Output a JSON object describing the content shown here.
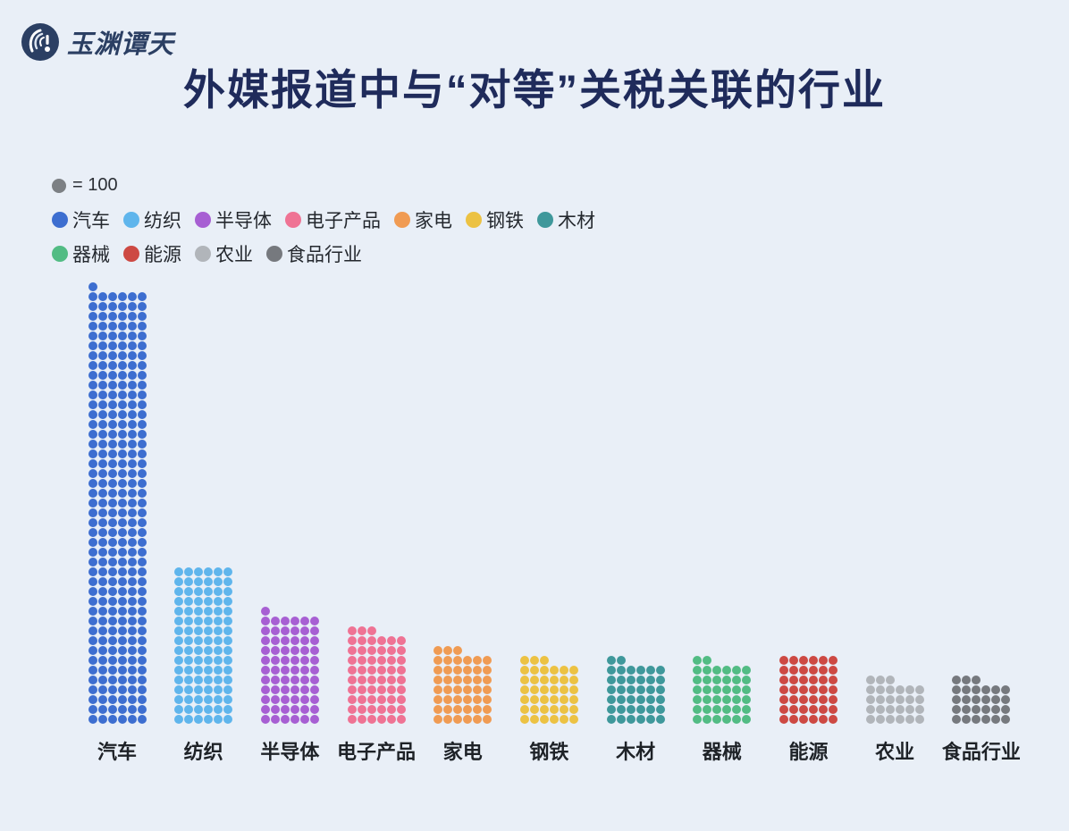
{
  "logo": {
    "text": "玉渊谭天"
  },
  "title": "外媒报道中与“对等”关税关联的行业",
  "legend": {
    "unit": {
      "label": "= 100",
      "color": "#7c8084"
    },
    "rows": [
      [
        {
          "label": "汽车",
          "color": "#3d6ed0"
        },
        {
          "label": "纺织",
          "color": "#5fb5ec"
        },
        {
          "label": "半导体",
          "color": "#a75fd3"
        },
        {
          "label": "电子产品",
          "color": "#ef7394"
        },
        {
          "label": "家电",
          "color": "#f09b53"
        },
        {
          "label": "钢铁",
          "color": "#ecc243"
        },
        {
          "label": "木材",
          "color": "#3f989b"
        }
      ],
      [
        {
          "label": "器械",
          "color": "#52bc84"
        },
        {
          "label": "能源",
          "color": "#cd4943"
        },
        {
          "label": "农业",
          "color": "#b1b5ba"
        },
        {
          "label": "食品行业",
          "color": "#76797e"
        }
      ]
    ]
  },
  "chart_data": {
    "type": "pictogram",
    "title": "外媒报道中与“对等”关税关联的行业",
    "dot_unit": 100,
    "dots_per_row": 6,
    "legend_position": "top-left",
    "categories": [
      "汽车",
      "纺织",
      "半导体",
      "电子产品",
      "家电",
      "钢铁",
      "木材",
      "器械",
      "能源",
      "农业",
      "食品行业"
    ],
    "dot_counts": [
      265,
      96,
      67,
      57,
      45,
      39,
      38,
      38,
      42,
      27,
      27
    ],
    "values": [
      26500,
      9600,
      6700,
      5700,
      4500,
      3900,
      3800,
      3800,
      4200,
      2700,
      2700
    ],
    "colors": [
      "#3d6ed0",
      "#5fb5ec",
      "#a75fd3",
      "#ef7394",
      "#f09b53",
      "#ecc243",
      "#3f989b",
      "#52bc84",
      "#cd4943",
      "#b1b5ba",
      "#76797e"
    ]
  }
}
